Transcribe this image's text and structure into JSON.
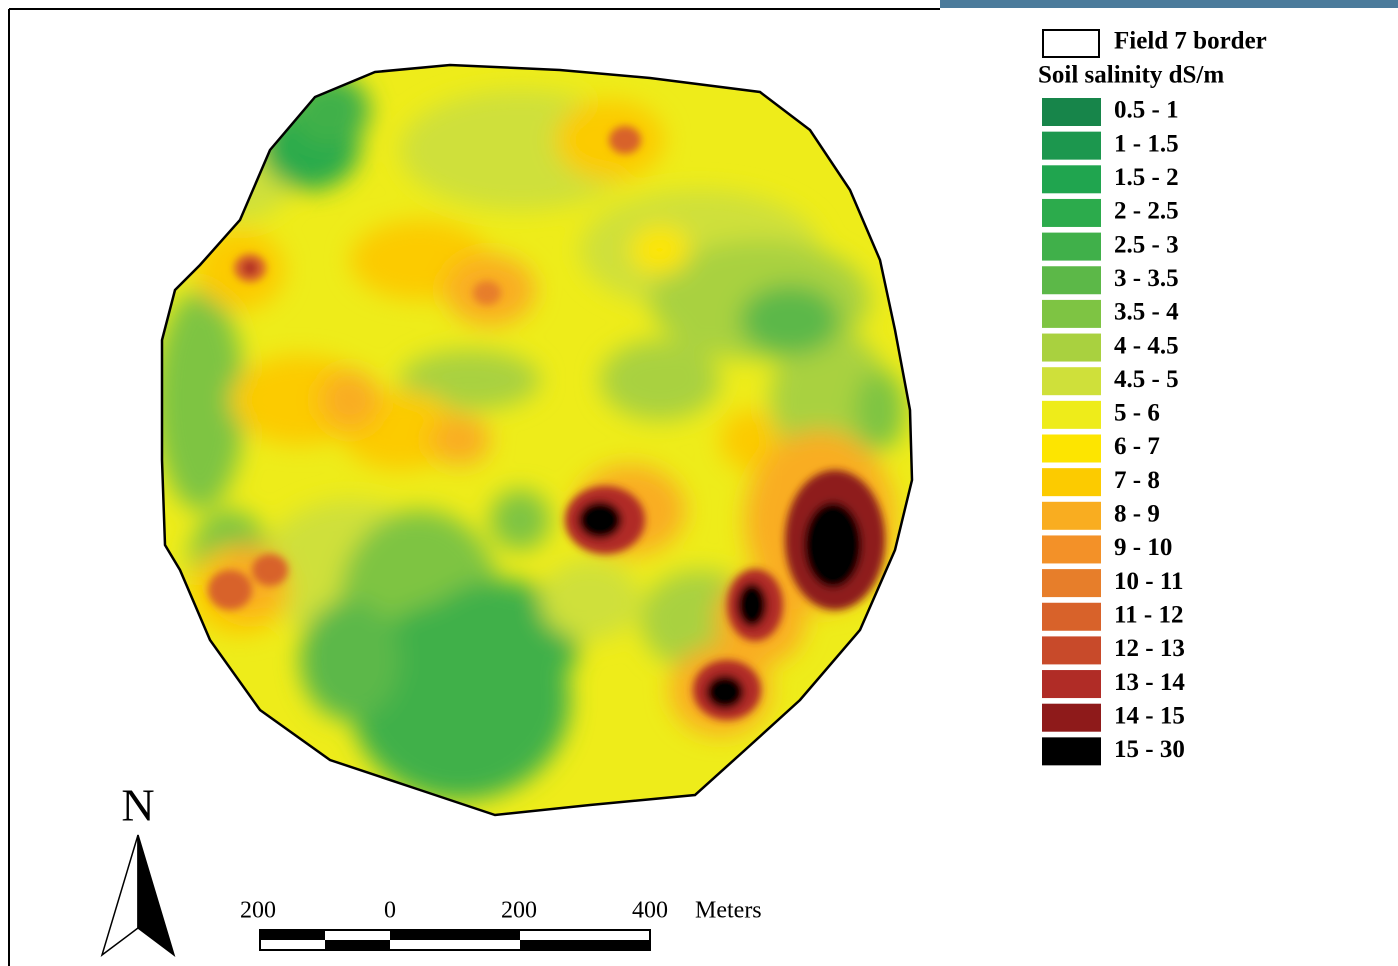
{
  "legend": {
    "border_label": "Field 7 border",
    "title": "Soil salinity dS/m",
    "classes": [
      {
        "label": "0.5 - 1",
        "color": "#17854a"
      },
      {
        "label": "1 - 1.5",
        "color": "#1c974e"
      },
      {
        "label": "1.5 - 2",
        "color": "#20a54f"
      },
      {
        "label": "2 - 2.5",
        "color": "#2cab4c"
      },
      {
        "label": "2.5 - 3",
        "color": "#40b04a"
      },
      {
        "label": "3 - 3.5",
        "color": "#5cb848"
      },
      {
        "label": "3.5 - 4",
        "color": "#7ec443"
      },
      {
        "label": "4 - 4.5",
        "color": "#a9d13f"
      },
      {
        "label": "4.5 - 5",
        "color": "#cfe03a"
      },
      {
        "label": "5 - 6",
        "color": "#eeec1a"
      },
      {
        "label": "6 - 7",
        "color": "#fde500"
      },
      {
        "label": "7 - 8",
        "color": "#fccb00"
      },
      {
        "label": "8 - 9",
        "color": "#f9ad20"
      },
      {
        "label": "9 - 10",
        "color": "#f39128"
      },
      {
        "label": "10 - 11",
        "color": "#e77e2a"
      },
      {
        "label": "11 - 12",
        "color": "#d8622a"
      },
      {
        "label": "12 - 13",
        "color": "#c84a2a"
      },
      {
        "label": "13 - 14",
        "color": "#b02c26"
      },
      {
        "label": "14 - 15",
        "color": "#8e1a1a"
      },
      {
        "label": "15 - 30",
        "color": "#000000"
      }
    ]
  },
  "north_arrow": {
    "label": "N"
  },
  "scale_bar": {
    "ticks": [
      "200",
      "0",
      "200",
      "400"
    ],
    "unit": "Meters"
  }
}
